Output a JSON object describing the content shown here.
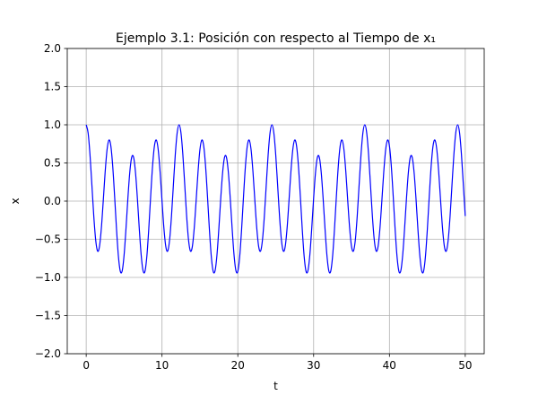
{
  "chart_data": {
    "type": "line",
    "title": "Ejemplo 3.1: Posición con respecto al Tiempo de x₁",
    "xlabel": "t",
    "ylabel": "x",
    "xlim": [
      -2.5,
      52.5
    ],
    "ylim": [
      -2.0,
      2.0
    ],
    "xticks": [
      0,
      10,
      20,
      30,
      40,
      50
    ],
    "yticks": [
      {
        "value": -2.0,
        "label": "−2.0"
      },
      {
        "value": -1.5,
        "label": "−1.5"
      },
      {
        "value": -1.0,
        "label": "−1.0"
      },
      {
        "value": -0.5,
        "label": "−0.5"
      },
      {
        "value": 0.0,
        "label": "0.0"
      },
      {
        "value": 0.5,
        "label": "0.5"
      },
      {
        "value": 1.0,
        "label": "1.0"
      },
      {
        "value": 1.5,
        "label": "1.5"
      },
      {
        "value": 2.0,
        "label": "2.0"
      }
    ],
    "grid": true,
    "x": [
      0,
      0.25,
      0.5,
      0.75,
      1,
      1.25,
      1.5,
      1.75,
      2,
      2.25,
      2.5,
      2.75,
      3,
      3.25,
      3.5,
      3.75,
      4,
      4.25,
      4.5,
      4.75,
      5,
      5.25,
      5.5,
      5.75,
      6,
      6.25,
      6.5,
      6.75,
      7,
      7.25,
      7.5,
      7.75,
      8,
      8.25,
      8.5,
      8.75,
      9,
      9.25,
      9.5,
      9.75,
      10,
      10.25,
      10.5,
      10.75,
      11,
      11.25,
      11.5,
      11.75,
      12,
      12.25,
      12.5,
      12.75,
      13,
      13.25,
      13.5,
      13.75,
      14,
      14.25,
      14.5,
      14.75,
      15,
      15.25,
      15.5,
      15.75,
      16,
      16.25,
      16.5,
      16.75,
      17,
      17.25,
      17.5,
      17.75,
      18,
      18.25,
      18.5,
      18.75,
      19,
      19.25,
      19.5,
      19.75,
      20,
      20.25,
      20.5,
      20.75,
      21,
      21.25,
      21.5,
      21.75,
      22,
      22.25,
      22.5,
      22.75,
      23,
      23.25,
      23.5,
      23.75,
      24,
      24.25,
      24.5,
      24.75,
      25,
      25.25,
      25.5,
      25.75,
      26,
      26.25,
      26.5,
      26.75,
      27,
      27.25,
      27.5,
      27.75,
      28,
      28.25,
      28.5,
      28.75,
      29,
      29.25,
      29.5,
      29.75,
      30,
      30.25,
      30.5,
      30.75,
      31,
      31.25,
      31.5,
      31.75,
      32,
      32.25,
      32.5,
      32.75,
      33,
      33.25,
      33.5,
      33.75,
      34,
      34.25,
      34.5,
      34.75,
      35,
      35.25,
      35.5,
      35.75,
      36,
      36.25,
      36.5,
      36.75,
      37,
      37.25,
      37.5,
      37.75,
      38,
      38.25,
      38.5,
      38.75,
      39,
      39.25,
      39.5,
      39.75,
      40,
      40.25,
      40.5,
      40.75,
      41,
      41.25,
      41.5,
      41.75,
      42,
      42.25,
      42.5,
      42.75,
      43,
      43.25,
      43.5,
      43.75,
      44,
      44.25,
      44.5,
      44.75,
      45,
      45.25,
      45.5,
      45.75,
      46,
      46.25,
      46.5,
      46.75,
      47,
      47.25,
      47.5,
      47.75,
      48,
      48.25,
      48.5,
      48.75,
      49,
      49.25,
      49.5,
      49.75,
      50
    ],
    "series": [
      {
        "color": "#0000ff",
        "values": [
          1.0,
          0.895,
          0.608,
          0.211,
          -0.196,
          -0.51,
          -0.655,
          -0.596,
          -0.354,
          0.004,
          0.381,
          0.673,
          0.8,
          0.722,
          0.454,
          0.059,
          -0.369,
          -0.724,
          -0.92,
          -0.912,
          -0.705,
          -0.358,
          0.038,
          0.378,
          0.574,
          0.574,
          0.378,
          0.038,
          -0.358,
          -0.705,
          -0.912,
          -0.92,
          -0.724,
          -0.369,
          0.059,
          0.454,
          0.722,
          0.8,
          0.673,
          0.381,
          0.004,
          -0.354,
          -0.596,
          -0.655,
          -0.51,
          -0.196,
          0.211,
          0.608,
          0.895,
          1.0,
          0.895,
          0.608,
          0.211,
          -0.196,
          -0.51,
          -0.655,
          -0.596,
          -0.354,
          0.004,
          0.381,
          0.673,
          0.8,
          0.722,
          0.454,
          0.059,
          -0.369,
          -0.724,
          -0.92,
          -0.912,
          -0.705,
          -0.358,
          0.038,
          0.378,
          0.574,
          0.574,
          0.378,
          0.038,
          -0.358,
          -0.705,
          -0.912,
          -0.92,
          -0.724,
          -0.369,
          0.059,
          0.454,
          0.722,
          0.8,
          0.673,
          0.381,
          0.004,
          -0.354,
          -0.596,
          -0.655,
          -0.51,
          -0.196,
          0.211,
          0.608,
          0.895,
          1.0,
          0.895,
          0.608,
          0.211,
          -0.196,
          -0.51,
          -0.655,
          -0.596,
          -0.354,
          0.004,
          0.381,
          0.673,
          0.8,
          0.722,
          0.454,
          0.059,
          -0.369,
          -0.724,
          -0.92,
          -0.912,
          -0.705,
          -0.358,
          0.038,
          0.378,
          0.574,
          0.574,
          0.378,
          0.038,
          -0.358,
          -0.705,
          -0.912,
          -0.92,
          -0.724,
          -0.369,
          0.059,
          0.454,
          0.722,
          0.8,
          0.673,
          0.381,
          0.004,
          -0.354,
          -0.596,
          -0.655,
          -0.51,
          -0.196,
          0.211,
          0.608,
          0.895,
          1.0,
          0.895,
          0.608,
          0.211,
          -0.196,
          -0.51,
          -0.655,
          -0.596,
          -0.354,
          0.004,
          0.381,
          0.673,
          0.8,
          0.722,
          0.454,
          0.059,
          -0.369,
          -0.724,
          -0.92,
          -0.912,
          -0.705,
          -0.358,
          0.038,
          0.378,
          0.574,
          0.574,
          0.378,
          0.038,
          -0.358,
          -0.705,
          -0.912,
          -0.92,
          -0.724,
          -0.369,
          0.059,
          0.454,
          0.722,
          0.8,
          0.673,
          0.381,
          0.004,
          -0.354,
          -0.596,
          -0.655,
          -0.51,
          -0.196,
          0.211,
          0.608,
          0.895,
          1.0,
          0.895,
          0.608,
          0.211,
          -0.196
        ]
      }
    ]
  }
}
